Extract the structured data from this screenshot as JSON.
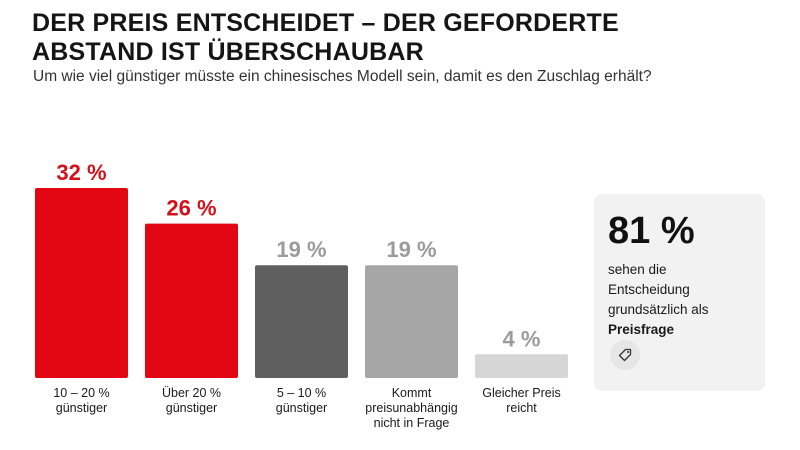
{
  "header": {
    "title_line1": "DER PREIS ENTSCHEIDET – DER GEFORDERTE",
    "title_line2": "ABSTAND IST ÜBERSCHAUBAR",
    "subtitle": "Um wie viel günstiger müsste ein chinesisches Modell sein, damit es den Zuschlag erhält?"
  },
  "chart_data": {
    "type": "bar",
    "categories": [
      [
        "10 – 20 %",
        "günstiger"
      ],
      [
        "Über 20 %",
        "günstiger"
      ],
      [
        "5 – 10 %",
        "günstiger"
      ],
      [
        "Kommt",
        "preisunabhängig",
        "nicht in Frage"
      ],
      [
        "Gleicher Preis",
        "reicht"
      ]
    ],
    "values": [
      32,
      26,
      19,
      19,
      4
    ],
    "value_labels": [
      "32 %",
      "26 %",
      "19 %",
      "19 %",
      "4 %"
    ],
    "bar_colors": [
      "#e30613",
      "#e30613",
      "#5f5f5f",
      "#a6a6a6",
      "#d6d6d6"
    ],
    "label_colors": [
      "#d4101b",
      "#d4101b",
      "#9b9b9b",
      "#9b9b9b",
      "#9b9b9b"
    ],
    "ylim": [
      0,
      32
    ],
    "grid": false,
    "legend": "none"
  },
  "card": {
    "value": "81 %",
    "text_lines": [
      "sehen die",
      "Entscheidung",
      "grundsätzlich als"
    ],
    "bold_text": "Preisfrage",
    "icon": "price-tag-icon"
  }
}
